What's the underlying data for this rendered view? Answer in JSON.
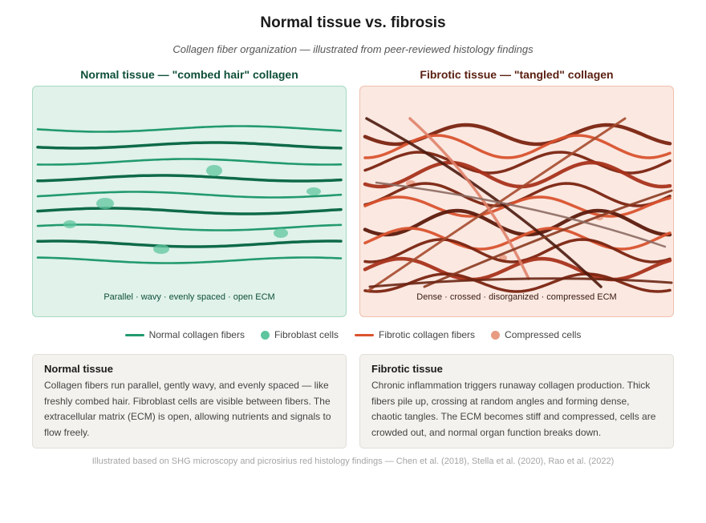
{
  "header": {
    "title": "Normal tissue vs. fibrosis",
    "subtitle": "Collagen fiber organization — illustrated from peer-reviewed histology findings"
  },
  "panels": {
    "normal": {
      "title": "Normal tissue — \"combed hair\" collagen",
      "caption": "Parallel · wavy · evenly spaced · open ECM",
      "fiber_colors": [
        "#229a6e",
        "#0e6a48"
      ],
      "cell_color": "#5fc59f"
    },
    "fibrotic": {
      "title": "Fibrotic tissue — \"tangled\" collagen",
      "caption": "Dense · crossed · disorganized · compressed ECM",
      "fiber_colors": [
        "#7a2410",
        "#d9532e",
        "#a8331b",
        "#5c1a0c"
      ],
      "cell_color": "#e89a82"
    }
  },
  "legend": [
    {
      "label": "Normal collagen fibers",
      "type": "line",
      "color": "#229a6e"
    },
    {
      "label": "Fibroblast cells",
      "type": "dot",
      "color": "#5fc59f"
    },
    {
      "label": "Fibrotic collagen fibers",
      "type": "line",
      "color": "#d9532e"
    },
    {
      "label": "Compressed cells",
      "type": "dot",
      "color": "#e89a82"
    }
  ],
  "descriptions": {
    "normal": {
      "title": "Normal tissue",
      "text": "Collagen fibers run parallel, gently wavy, and evenly spaced — like freshly combed hair. Fibroblast cells are visible between fibers. The extracellular matrix (ECM) is open, allowing nutrients and signals to flow freely."
    },
    "fibrotic": {
      "title": "Fibrotic tissue",
      "text": "Chronic inflammation triggers runaway collagen production. Thick fibers pile up, crossing at random angles and forming dense, chaotic tangles. The ECM becomes stiff and compressed, cells are crowded out, and normal organ function breaks down."
    }
  },
  "footer": "Illustrated based on SHG microscopy and picrosirius red histology findings — Chen et al. (2018), Stella et al. (2020), Rao et al. (2022)"
}
